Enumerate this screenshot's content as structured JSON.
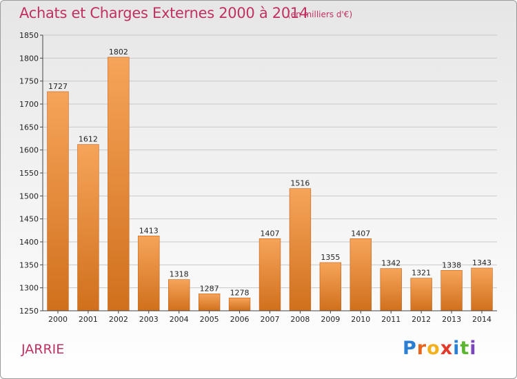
{
  "header": {
    "title": "Achats et Charges Externes 2000 à 2014",
    "subtitle": "(en milliers d'€)"
  },
  "footer": {
    "commune": "JARRIE",
    "logo_letters": [
      "P",
      "r",
      "o",
      "x",
      "i",
      "t",
      "i"
    ],
    "logo_colors": [
      "#2a7fd4",
      "#e8641e",
      "#f2b01e",
      "#e23a2a",
      "#2a7fd4",
      "#5bb531",
      "#7a47b8"
    ]
  },
  "colors": {
    "bar_top": "#f6a45a",
    "bar_bottom": "#d0701c",
    "bar_edge": "#c06018",
    "grid": "#c8c8c8",
    "axis": "#444444",
    "title": "#c03060"
  },
  "chart_data": {
    "type": "bar",
    "categories": [
      "2000",
      "2001",
      "2002",
      "2003",
      "2004",
      "2005",
      "2006",
      "2007",
      "2008",
      "2009",
      "2010",
      "2011",
      "2012",
      "2013",
      "2014"
    ],
    "values": [
      1727,
      1612,
      1802,
      1413,
      1318,
      1287,
      1278,
      1407,
      1516,
      1355,
      1407,
      1342,
      1321,
      1338,
      1343
    ],
    "ylim": [
      1250,
      1850
    ],
    "yticks": [
      1250,
      1300,
      1350,
      1400,
      1450,
      1500,
      1550,
      1600,
      1650,
      1700,
      1750,
      1800,
      1850
    ],
    "grid": true,
    "title": "Achats et Charges Externes 2000 à 2014",
    "xlabel": "",
    "ylabel": ""
  }
}
